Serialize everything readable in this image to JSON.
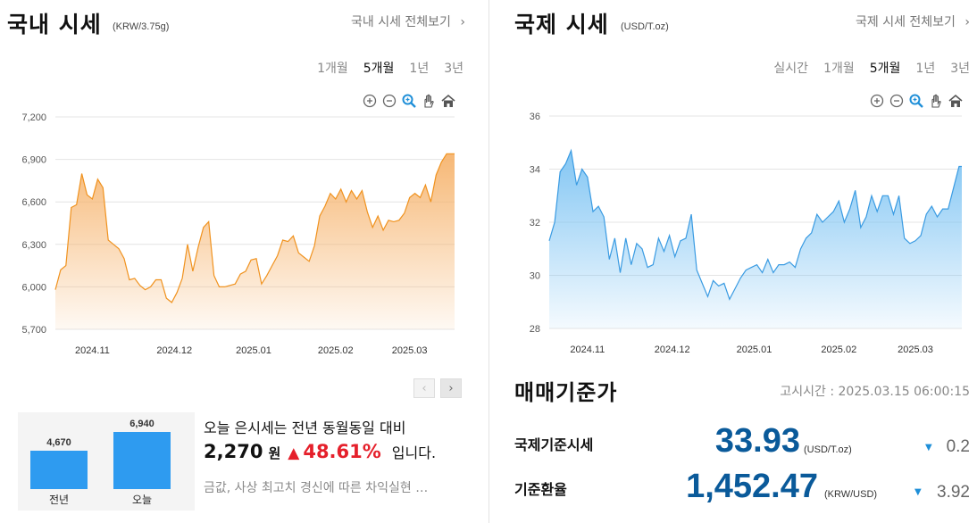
{
  "domestic": {
    "title": "국내 시세",
    "unit": "(KRW/3.75g)",
    "view_all": "국내 시세 전체보기",
    "chevron_icon": "chevron-right-icon",
    "periods": [
      "1개월",
      "5개월",
      "1년",
      "3년"
    ],
    "active_period": "5개월",
    "toolbar_icons": [
      "zoom-in-icon",
      "zoom-out-icon",
      "magnifier-icon",
      "hand-pan-icon",
      "home-icon"
    ],
    "pager": {
      "prev": "‹",
      "next": "›"
    },
    "year_compare": {
      "bars": [
        {
          "label": "전년",
          "value": 4670,
          "value_text": "4,670"
        },
        {
          "label": "오늘",
          "value": 6940,
          "value_text": "6,940"
        }
      ]
    },
    "summary": {
      "line1": "오늘 은시세는 전년 동월동일 대비",
      "diff": "2,270",
      "diff_unit": "원",
      "arrow": "▲",
      "pct": "48.61%",
      "suffix": "입니다.",
      "news": "금값, 사상 최고치 경신에 따른 차익실현 …"
    }
  },
  "international": {
    "title": "국제 시세",
    "unit": "(USD/T.oz)",
    "view_all": "국제 시세 전체보기",
    "chevron_icon": "chevron-right-icon",
    "periods": [
      "실시간",
      "1개월",
      "5개월",
      "1년",
      "3년"
    ],
    "active_period": "5개월",
    "toolbar_icons": [
      "zoom-in-icon",
      "zoom-out-icon",
      "magnifier-icon",
      "hand-pan-icon",
      "home-icon"
    ]
  },
  "standard_price": {
    "title": "매매기준가",
    "notice_time": "고시시간 : 2025.03.15 06:00:15",
    "rows": [
      {
        "label": "국제기준시세",
        "value": "33.93",
        "unit": "(USD/T.oz)",
        "arrow": "▼",
        "change": "0.2"
      },
      {
        "label": "기준환율",
        "value": "1,452.47",
        "unit": "(KRW/USD)",
        "arrow": "▼",
        "change": "3.92"
      }
    ]
  },
  "colors": {
    "domestic_line": "#f0921e",
    "domestic_fill_top": "#f6b46e",
    "international_line": "#3a9be2",
    "international_fill_top": "#7cc3f3",
    "up": "#e5202b",
    "down": "#1f8fd8",
    "value_blue": "#0a5a9a",
    "bar": "#2e9bf0"
  },
  "chart_data": [
    {
      "type": "area",
      "title": "국내 시세",
      "xlabel": "",
      "ylabel": "",
      "y_ticks": [
        "7,200",
        "6,900",
        "6,600",
        "6,300",
        "6,000",
        "5,700"
      ],
      "y_tick_values": [
        7200,
        6900,
        6600,
        6300,
        6000,
        5700
      ],
      "ylim": [
        5700,
        7200
      ],
      "x_ticks": [
        "2024.11",
        "2024.12",
        "2025.01",
        "2025.02",
        "2025.03"
      ],
      "x_tick_days": [
        14,
        45,
        75,
        106,
        134
      ],
      "x_range_days": [
        0,
        151
      ],
      "grid": true,
      "x": [
        0,
        2,
        4,
        6,
        8,
        10,
        12,
        14,
        16,
        18,
        20,
        22,
        24,
        26,
        28,
        30,
        32,
        34,
        36,
        38,
        40,
        42,
        44,
        46,
        48,
        50,
        52,
        54,
        56,
        58,
        60,
        62,
        64,
        66,
        68,
        70,
        72,
        74,
        76,
        78,
        80,
        82,
        84,
        86,
        88,
        90,
        92,
        94,
        96,
        98,
        100,
        102,
        104,
        106,
        108,
        110,
        112,
        114,
        116,
        118,
        120,
        122,
        124,
        126,
        128,
        130,
        132,
        134,
        136,
        138,
        140,
        142,
        144,
        146,
        148,
        150,
        151
      ],
      "values": [
        5980,
        6120,
        6150,
        6560,
        6580,
        6800,
        6650,
        6620,
        6760,
        6700,
        6330,
        6300,
        6270,
        6200,
        6050,
        6060,
        6010,
        5980,
        6000,
        6050,
        6050,
        5920,
        5890,
        5960,
        6060,
        6300,
        6110,
        6280,
        6420,
        6460,
        6080,
        6000,
        6000,
        6010,
        6020,
        6090,
        6110,
        6190,
        6200,
        6020,
        6080,
        6150,
        6220,
        6330,
        6320,
        6360,
        6240,
        6210,
        6180,
        6290,
        6500,
        6570,
        6660,
        6620,
        6690,
        6600,
        6680,
        6620,
        6680,
        6530,
        6420,
        6500,
        6400,
        6470,
        6460,
        6470,
        6520,
        6630,
        6660,
        6630,
        6720,
        6600,
        6790,
        6880,
        6940,
        6940,
        6940
      ]
    },
    {
      "type": "area",
      "title": "국제 시세",
      "xlabel": "",
      "ylabel": "",
      "y_ticks": [
        "36",
        "34",
        "32",
        "30",
        "28"
      ],
      "y_tick_values": [
        36,
        34,
        32,
        30,
        28
      ],
      "ylim": [
        28,
        36
      ],
      "x_ticks": [
        "2024.11",
        "2024.12",
        "2025.01",
        "2025.02",
        "2025.03"
      ],
      "x_tick_days": [
        14,
        45,
        75,
        106,
        134
      ],
      "x_range_days": [
        0,
        151
      ],
      "grid": true,
      "x": [
        0,
        2,
        4,
        6,
        8,
        10,
        12,
        14,
        16,
        18,
        20,
        22,
        24,
        26,
        28,
        30,
        32,
        34,
        36,
        38,
        40,
        42,
        44,
        46,
        48,
        50,
        52,
        54,
        56,
        58,
        60,
        62,
        64,
        66,
        68,
        70,
        72,
        74,
        76,
        78,
        80,
        82,
        84,
        86,
        88,
        90,
        92,
        94,
        96,
        98,
        100,
        102,
        104,
        106,
        108,
        110,
        112,
        114,
        116,
        118,
        120,
        122,
        124,
        126,
        128,
        130,
        132,
        134,
        136,
        138,
        140,
        142,
        144,
        146,
        148,
        150,
        151
      ],
      "values": [
        31.3,
        32.0,
        33.9,
        34.2,
        34.7,
        33.4,
        34.0,
        33.7,
        32.4,
        32.6,
        32.2,
        30.6,
        31.4,
        30.1,
        31.4,
        30.4,
        31.2,
        31.0,
        30.3,
        30.4,
        31.4,
        30.9,
        31.5,
        30.7,
        31.3,
        31.4,
        32.3,
        30.2,
        29.7,
        29.2,
        29.8,
        29.6,
        29.7,
        29.1,
        29.5,
        29.9,
        30.2,
        30.3,
        30.4,
        30.1,
        30.6,
        30.1,
        30.4,
        30.4,
        30.5,
        30.3,
        31.0,
        31.4,
        31.6,
        32.3,
        32.0,
        32.2,
        32.4,
        32.8,
        32.0,
        32.5,
        33.2,
        31.8,
        32.2,
        33.0,
        32.4,
        33.0,
        33.0,
        32.3,
        33.0,
        31.4,
        31.2,
        31.3,
        31.5,
        32.3,
        32.6,
        32.2,
        32.5,
        32.5,
        33.3,
        34.1,
        34.1
      ]
    }
  ]
}
